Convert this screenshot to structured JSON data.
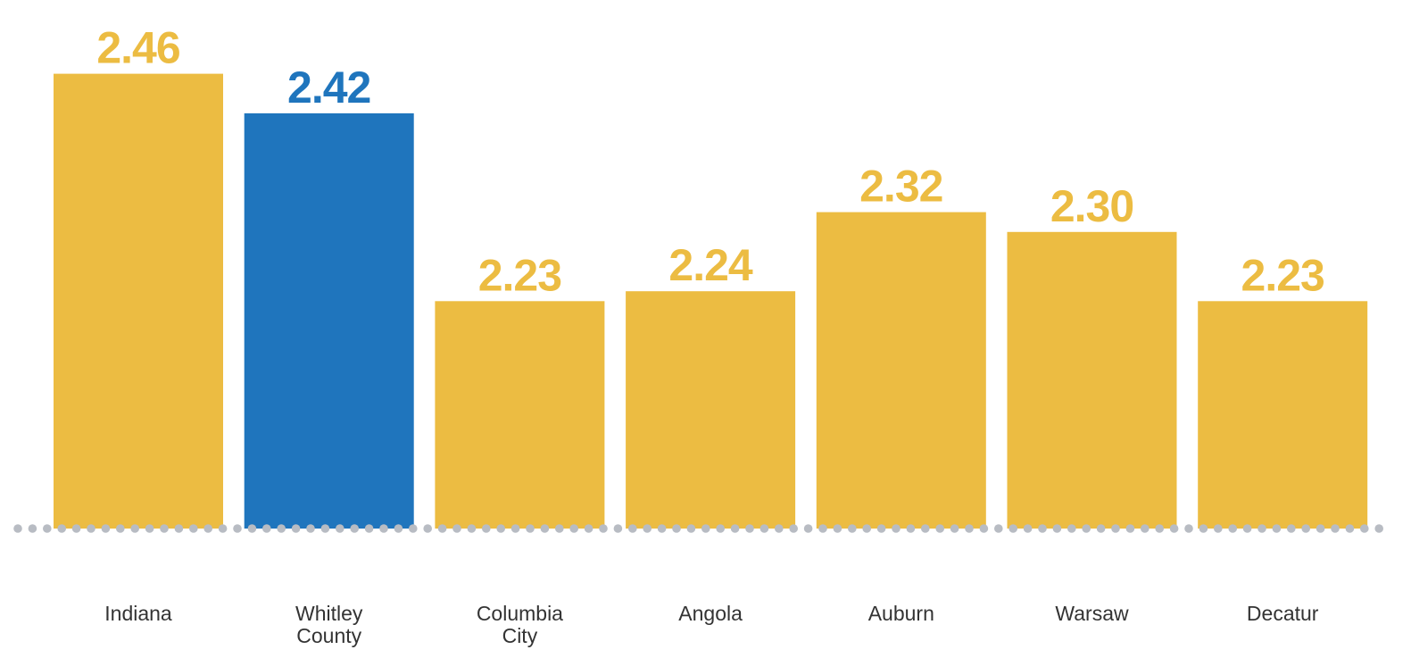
{
  "chart_data": {
    "type": "bar",
    "categories": [
      "Indiana",
      "Whitley County",
      "Columbia City",
      "Angola",
      "Auburn",
      "Warsaw",
      "Decatur"
    ],
    "category_lines": [
      [
        "Indiana"
      ],
      [
        "Whitley",
        "County"
      ],
      [
        "Columbia",
        "City"
      ],
      [
        "Angola"
      ],
      [
        "Auburn"
      ],
      [
        "Warsaw"
      ],
      [
        "Decatur"
      ]
    ],
    "values": [
      2.46,
      2.42,
      2.23,
      2.24,
      2.32,
      2.3,
      2.23
    ],
    "value_labels": [
      "2.46",
      "2.42",
      "2.23",
      "2.24",
      "2.32",
      "2.30",
      "2.23"
    ],
    "highlight_index": 1,
    "title": "",
    "xlabel": "",
    "ylabel": "",
    "ylim": [
      2.0,
      2.475
    ],
    "grid": false,
    "legend": "none"
  },
  "colors": {
    "bar": "#ECBC42",
    "highlight": "#1F75BD",
    "baseline_dots": "#B8BCC3",
    "category_text": "#333333"
  }
}
